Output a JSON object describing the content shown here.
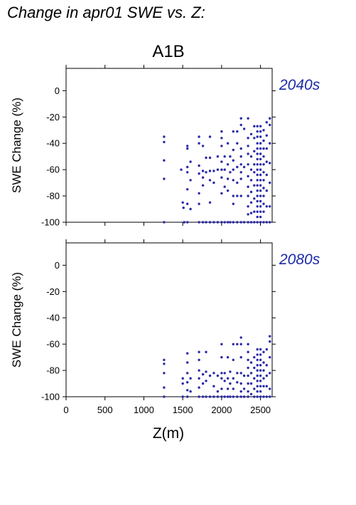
{
  "title": "Change in apr01 SWE vs. Z:",
  "scenario": "A1B",
  "colors": {
    "points": "#2a2aa8",
    "period_label": "#1a2aa8"
  },
  "chart_data": [
    {
      "type": "scatter",
      "period": "2040s",
      "xlabel": "Z(m)",
      "ylabel": "SWE Change (%)",
      "xlim": [
        0,
        2650
      ],
      "ylim": [
        -100,
        17
      ],
      "xticks": [
        0,
        500,
        1000,
        1500,
        2000,
        2500
      ],
      "yticks": [
        0,
        -20,
        -40,
        -60,
        -80,
        -100
      ],
      "grid": false,
      "points": [
        [
          1260,
          -35
        ],
        [
          1260,
          -39
        ],
        [
          1260,
          -53
        ],
        [
          1260,
          -67
        ],
        [
          1260,
          -100
        ],
        [
          1480,
          -60
        ],
        [
          1500,
          -85
        ],
        [
          1510,
          -89
        ],
        [
          1520,
          -100
        ],
        [
          1560,
          -42
        ],
        [
          1560,
          -44
        ],
        [
          1560,
          -58
        ],
        [
          1560,
          -62
        ],
        [
          1560,
          -75
        ],
        [
          1560,
          -86
        ],
        [
          1560,
          -100
        ],
        [
          1600,
          -54
        ],
        [
          1600,
          -68
        ],
        [
          1600,
          -90
        ],
        [
          1710,
          -35
        ],
        [
          1710,
          -40
        ],
        [
          1710,
          -57
        ],
        [
          1710,
          -63
        ],
        [
          1710,
          -78
        ],
        [
          1710,
          -86
        ],
        [
          1710,
          -100
        ],
        [
          1760,
          -42
        ],
        [
          1760,
          -61
        ],
        [
          1760,
          -66
        ],
        [
          1760,
          -72
        ],
        [
          1760,
          -100
        ],
        [
          1800,
          -51
        ],
        [
          1800,
          -62
        ],
        [
          1800,
          -100
        ],
        [
          1850,
          -35
        ],
        [
          1850,
          -51
        ],
        [
          1850,
          -61
        ],
        [
          1850,
          -68
        ],
        [
          1850,
          -85
        ],
        [
          1850,
          -100
        ],
        [
          1900,
          -61
        ],
        [
          1900,
          -70
        ],
        [
          1900,
          -100
        ],
        [
          1950,
          -50
        ],
        [
          1950,
          -60
        ],
        [
          1950,
          -100
        ],
        [
          2000,
          -31
        ],
        [
          2000,
          -36
        ],
        [
          2000,
          -42
        ],
        [
          2000,
          -54
        ],
        [
          2000,
          -60
        ],
        [
          2000,
          -66
        ],
        [
          2000,
          -78
        ],
        [
          2000,
          -100
        ],
        [
          2040,
          -50
        ],
        [
          2040,
          -60
        ],
        [
          2040,
          -73
        ],
        [
          2040,
          -100
        ],
        [
          2080,
          -40
        ],
        [
          2080,
          -56
        ],
        [
          2080,
          -67
        ],
        [
          2080,
          -76
        ],
        [
          2080,
          -100
        ],
        [
          2110,
          -50
        ],
        [
          2110,
          -62
        ],
        [
          2110,
          -100
        ],
        [
          2150,
          -31
        ],
        [
          2150,
          -45
        ],
        [
          2150,
          -53
        ],
        [
          2150,
          -60
        ],
        [
          2150,
          -68
        ],
        [
          2150,
          -80
        ],
        [
          2150,
          -86
        ],
        [
          2150,
          -100
        ],
        [
          2200,
          -31
        ],
        [
          2200,
          -40
        ],
        [
          2200,
          -58
        ],
        [
          2200,
          -70
        ],
        [
          2200,
          -80
        ],
        [
          2200,
          -100
        ],
        [
          2250,
          -21
        ],
        [
          2250,
          -26
        ],
        [
          2250,
          -44
        ],
        [
          2250,
          -50
        ],
        [
          2250,
          -56
        ],
        [
          2250,
          -62
        ],
        [
          2250,
          -67
        ],
        [
          2250,
          -80
        ],
        [
          2250,
          -100
        ],
        [
          2290,
          -29
        ],
        [
          2290,
          -58
        ],
        [
          2290,
          -100
        ],
        [
          2340,
          -21
        ],
        [
          2340,
          -36
        ],
        [
          2340,
          -42
        ],
        [
          2340,
          -48
        ],
        [
          2340,
          -56
        ],
        [
          2340,
          -65
        ],
        [
          2340,
          -73
        ],
        [
          2340,
          -80
        ],
        [
          2340,
          -88
        ],
        [
          2340,
          -94
        ],
        [
          2340,
          -100
        ],
        [
          2380,
          -33
        ],
        [
          2380,
          -50
        ],
        [
          2380,
          -60
        ],
        [
          2380,
          -68
        ],
        [
          2380,
          -77
        ],
        [
          2380,
          -85
        ],
        [
          2380,
          -93
        ],
        [
          2380,
          -100
        ],
        [
          2420,
          -27
        ],
        [
          2420,
          -36
        ],
        [
          2420,
          -46
        ],
        [
          2420,
          -56
        ],
        [
          2420,
          -62
        ],
        [
          2420,
          -72
        ],
        [
          2420,
          -82
        ],
        [
          2420,
          -92
        ],
        [
          2420,
          -100
        ],
        [
          2460,
          -27
        ],
        [
          2460,
          -31
        ],
        [
          2460,
          -35
        ],
        [
          2460,
          -40
        ],
        [
          2460,
          -44
        ],
        [
          2460,
          -48
        ],
        [
          2460,
          -52
        ],
        [
          2460,
          -56
        ],
        [
          2460,
          -60
        ],
        [
          2460,
          -64
        ],
        [
          2460,
          -68
        ],
        [
          2460,
          -72
        ],
        [
          2460,
          -76
        ],
        [
          2460,
          -80
        ],
        [
          2460,
          -84
        ],
        [
          2460,
          -88
        ],
        [
          2460,
          -92
        ],
        [
          2460,
          -96
        ],
        [
          2460,
          -100
        ],
        [
          2500,
          -27
        ],
        [
          2500,
          -31
        ],
        [
          2500,
          -35
        ],
        [
          2500,
          -40
        ],
        [
          2500,
          -44
        ],
        [
          2500,
          -48
        ],
        [
          2500,
          -52
        ],
        [
          2500,
          -56
        ],
        [
          2500,
          -60
        ],
        [
          2500,
          -64
        ],
        [
          2500,
          -68
        ],
        [
          2500,
          -72
        ],
        [
          2500,
          -76
        ],
        [
          2500,
          -80
        ],
        [
          2500,
          -84
        ],
        [
          2500,
          -88
        ],
        [
          2500,
          -92
        ],
        [
          2500,
          -96
        ],
        [
          2500,
          -100
        ],
        [
          2540,
          -30
        ],
        [
          2540,
          -38
        ],
        [
          2540,
          -44
        ],
        [
          2540,
          -50
        ],
        [
          2540,
          -56
        ],
        [
          2540,
          -62
        ],
        [
          2540,
          -68
        ],
        [
          2540,
          -74
        ],
        [
          2540,
          -80
        ],
        [
          2540,
          -86
        ],
        [
          2540,
          -92
        ],
        [
          2540,
          -100
        ],
        [
          2580,
          -24
        ],
        [
          2580,
          -34
        ],
        [
          2580,
          -44
        ],
        [
          2580,
          -54
        ],
        [
          2580,
          -64
        ],
        [
          2580,
          -76
        ],
        [
          2580,
          -88
        ],
        [
          2580,
          -100
        ],
        [
          2620,
          -21
        ],
        [
          2620,
          -26
        ],
        [
          2620,
          -40
        ],
        [
          2620,
          -55
        ],
        [
          2620,
          -70
        ],
        [
          2620,
          -88
        ],
        [
          2620,
          -100
        ]
      ]
    },
    {
      "type": "scatter",
      "period": "2080s",
      "xlabel": "Z(m)",
      "ylabel": "SWE Change (%)",
      "xlim": [
        0,
        2650
      ],
      "ylim": [
        -100,
        17
      ],
      "xticks": [
        0,
        500,
        1000,
        1500,
        2000,
        2500
      ],
      "yticks": [
        0,
        -20,
        -40,
        -60,
        -80,
        -100
      ],
      "grid": false,
      "points": [
        [
          1260,
          -72
        ],
        [
          1260,
          -75
        ],
        [
          1260,
          -82
        ],
        [
          1260,
          -93
        ],
        [
          1260,
          -100
        ],
        [
          1500,
          -86
        ],
        [
          1500,
          -90
        ],
        [
          1500,
          -100
        ],
        [
          1560,
          -67
        ],
        [
          1560,
          -74
        ],
        [
          1560,
          -82
        ],
        [
          1560,
          -89
        ],
        [
          1560,
          -95
        ],
        [
          1560,
          -100
        ],
        [
          1600,
          -86
        ],
        [
          1600,
          -96
        ],
        [
          1710,
          -66
        ],
        [
          1710,
          -72
        ],
        [
          1710,
          -80
        ],
        [
          1710,
          -86
        ],
        [
          1710,
          -93
        ],
        [
          1710,
          -100
        ],
        [
          1760,
          -83
        ],
        [
          1760,
          -90
        ],
        [
          1760,
          -100
        ],
        [
          1800,
          -66
        ],
        [
          1800,
          -81
        ],
        [
          1800,
          -88
        ],
        [
          1800,
          -100
        ],
        [
          1850,
          -84
        ],
        [
          1850,
          -100
        ],
        [
          1900,
          -82
        ],
        [
          1900,
          -92
        ],
        [
          1900,
          -100
        ],
        [
          1950,
          -84
        ],
        [
          1950,
          -96
        ],
        [
          1950,
          -100
        ],
        [
          2000,
          -60
        ],
        [
          2000,
          -70
        ],
        [
          2000,
          -82
        ],
        [
          2000,
          -86
        ],
        [
          2000,
          -94
        ],
        [
          2000,
          -100
        ],
        [
          2040,
          -82
        ],
        [
          2040,
          -88
        ],
        [
          2040,
          -100
        ],
        [
          2080,
          -70
        ],
        [
          2080,
          -86
        ],
        [
          2080,
          -94
        ],
        [
          2080,
          -100
        ],
        [
          2110,
          -81
        ],
        [
          2110,
          -90
        ],
        [
          2110,
          -100
        ],
        [
          2150,
          -60
        ],
        [
          2150,
          -72
        ],
        [
          2150,
          -86
        ],
        [
          2150,
          -94
        ],
        [
          2150,
          -100
        ],
        [
          2200,
          -60
        ],
        [
          2200,
          -82
        ],
        [
          2200,
          -89
        ],
        [
          2200,
          -100
        ],
        [
          2250,
          -55
        ],
        [
          2250,
          -60
        ],
        [
          2250,
          -70
        ],
        [
          2250,
          -82
        ],
        [
          2250,
          -90
        ],
        [
          2250,
          -96
        ],
        [
          2250,
          -100
        ],
        [
          2290,
          -84
        ],
        [
          2290,
          -94
        ],
        [
          2290,
          -100
        ],
        [
          2340,
          -60
        ],
        [
          2340,
          -66
        ],
        [
          2340,
          -72
        ],
        [
          2340,
          -78
        ],
        [
          2340,
          -84
        ],
        [
          2340,
          -90
        ],
        [
          2340,
          -96
        ],
        [
          2340,
          -100
        ],
        [
          2380,
          -74
        ],
        [
          2380,
          -82
        ],
        [
          2380,
          -90
        ],
        [
          2380,
          -98
        ],
        [
          2420,
          -70
        ],
        [
          2420,
          -78
        ],
        [
          2420,
          -86
        ],
        [
          2420,
          -94
        ],
        [
          2420,
          -100
        ],
        [
          2460,
          -64
        ],
        [
          2460,
          -68
        ],
        [
          2460,
          -72
        ],
        [
          2460,
          -76
        ],
        [
          2460,
          -80
        ],
        [
          2460,
          -84
        ],
        [
          2460,
          -88
        ],
        [
          2460,
          -92
        ],
        [
          2460,
          -96
        ],
        [
          2460,
          -100
        ],
        [
          2500,
          -64
        ],
        [
          2500,
          -68
        ],
        [
          2500,
          -72
        ],
        [
          2500,
          -76
        ],
        [
          2500,
          -80
        ],
        [
          2500,
          -84
        ],
        [
          2500,
          -88
        ],
        [
          2500,
          -92
        ],
        [
          2500,
          -96
        ],
        [
          2500,
          -100
        ],
        [
          2540,
          -66
        ],
        [
          2540,
          -74
        ],
        [
          2540,
          -80
        ],
        [
          2540,
          -86
        ],
        [
          2540,
          -92
        ],
        [
          2540,
          -100
        ],
        [
          2580,
          -64
        ],
        [
          2580,
          -76
        ],
        [
          2580,
          -84
        ],
        [
          2580,
          -92
        ],
        [
          2580,
          -100
        ],
        [
          2620,
          -54
        ],
        [
          2620,
          -58
        ],
        [
          2620,
          -70
        ],
        [
          2620,
          -82
        ],
        [
          2620,
          -94
        ],
        [
          2620,
          -100
        ]
      ]
    }
  ]
}
